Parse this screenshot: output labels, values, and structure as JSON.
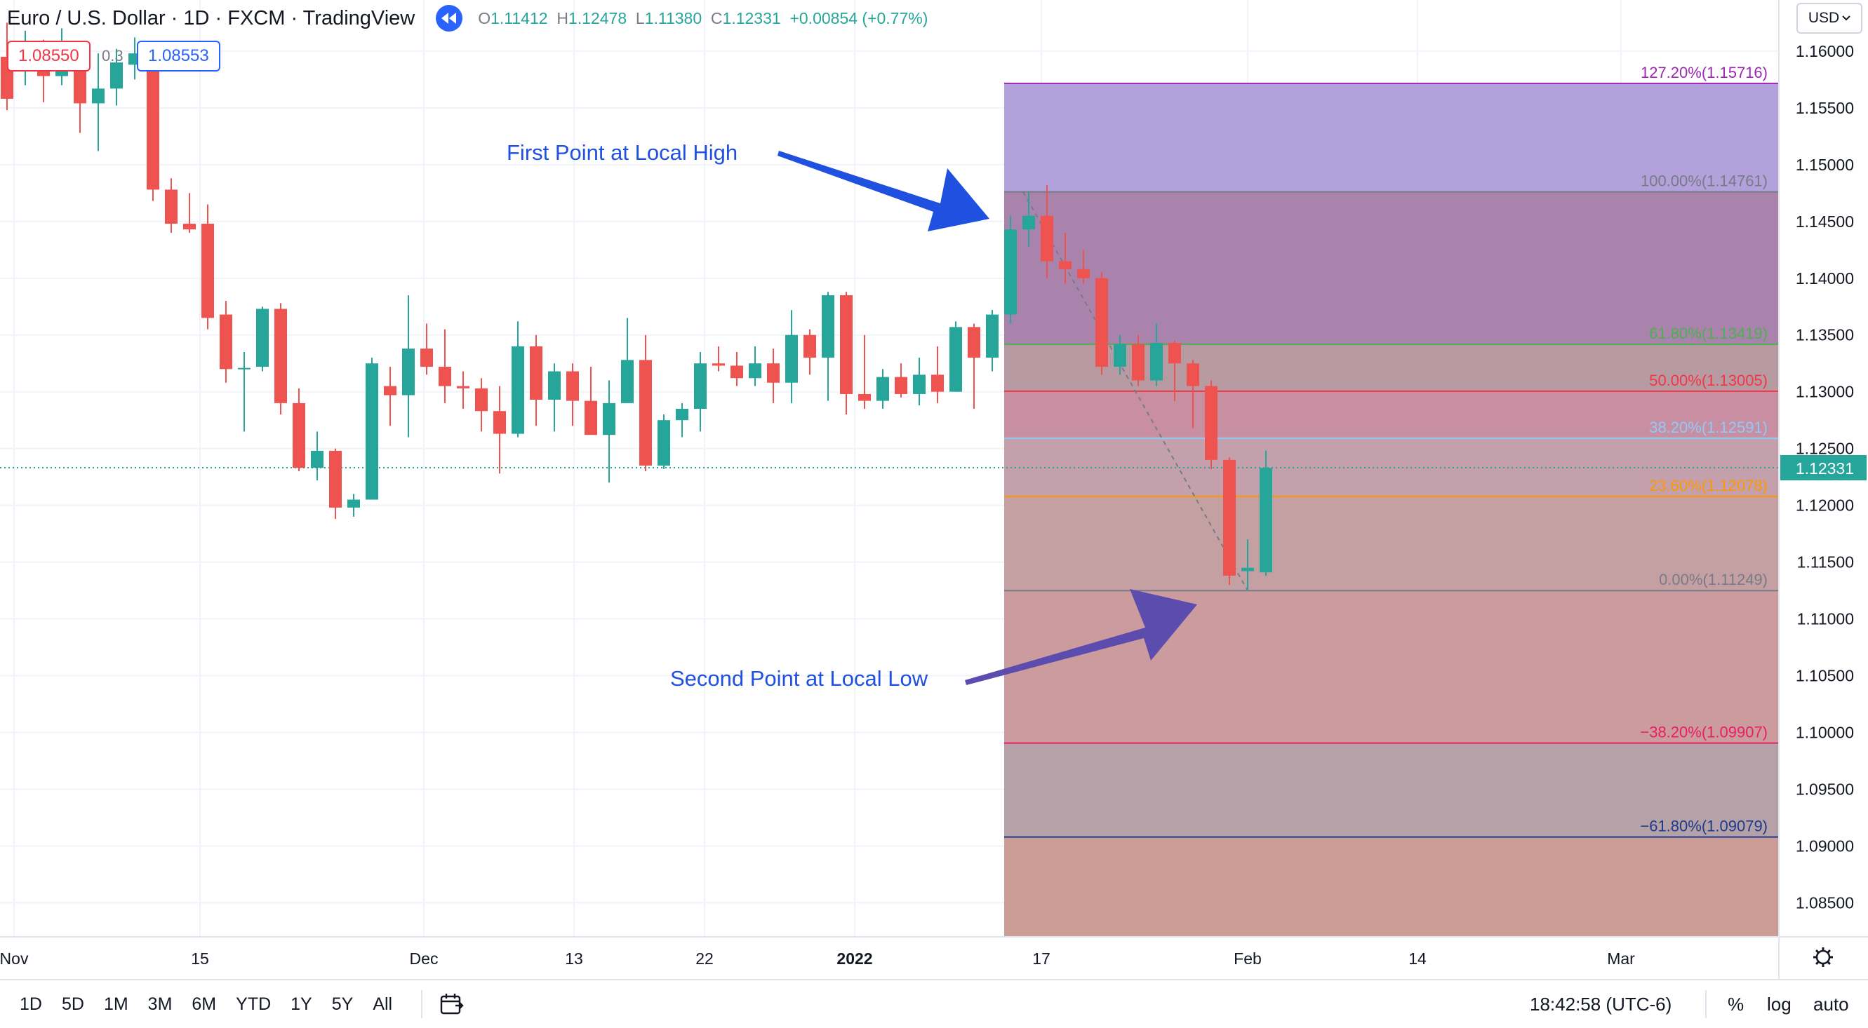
{
  "header": {
    "symbol": "Euro / U.S. Dollar · 1D · FXCM · TradingView",
    "ohlc": {
      "o_label": "O",
      "o": "1.11412",
      "h_label": "H",
      "h": "1.12478",
      "l_label": "L",
      "l": "1.11380",
      "c_label": "C",
      "c": "1.12331",
      "change": "+0.00854 (+0.77%)"
    },
    "sell_price": "1.08550",
    "spread": "0.3",
    "buy_price": "1.08553",
    "currency": "USD"
  },
  "chart_data": {
    "type": "candlestick",
    "title": "Euro / U.S. Dollar · 1D · FXCM · TradingView",
    "x_labels": [
      "Nov",
      "15",
      "Dec",
      "13",
      "22",
      "2022",
      "17",
      "Feb",
      "14",
      "Mar"
    ],
    "y_ticks": [
      1.085,
      1.09,
      1.095,
      1.1,
      1.105,
      1.11,
      1.115,
      1.12,
      1.125,
      1.13,
      1.135,
      1.14,
      1.145,
      1.15,
      1.155,
      1.16
    ],
    "y_tick_labels": [
      "1.08500",
      "1.09000",
      "1.09500",
      "1.10000",
      "1.10500",
      "1.11000",
      "1.11500",
      "1.12000",
      "1.12500",
      "1.13000",
      "1.13500",
      "1.14000",
      "1.14500",
      "1.15000",
      "1.15500",
      "1.16000"
    ],
    "ylim": [
      1.082,
      1.1645
    ],
    "last_price": 1.12331,
    "last_price_label": "1.12331",
    "candles": [
      {
        "o": 1.1595,
        "h": 1.1625,
        "l": 1.1548,
        "c": 1.1558
      },
      {
        "o": 1.1582,
        "h": 1.1618,
        "l": 1.157,
        "c": 1.1598
      },
      {
        "o": 1.1595,
        "h": 1.161,
        "l": 1.1555,
        "c": 1.1578
      },
      {
        "o": 1.1578,
        "h": 1.162,
        "l": 1.157,
        "c": 1.1593
      },
      {
        "o": 1.1597,
        "h": 1.1608,
        "l": 1.1528,
        "c": 1.1554
      },
      {
        "o": 1.1554,
        "h": 1.1598,
        "l": 1.1512,
        "c": 1.1567
      },
      {
        "o": 1.1567,
        "h": 1.1602,
        "l": 1.1552,
        "c": 1.159
      },
      {
        "o": 1.1588,
        "h": 1.1612,
        "l": 1.1575,
        "c": 1.1598
      },
      {
        "o": 1.1592,
        "h": 1.1598,
        "l": 1.1468,
        "c": 1.1478
      },
      {
        "o": 1.1478,
        "h": 1.1488,
        "l": 1.144,
        "c": 1.1448
      },
      {
        "o": 1.1448,
        "h": 1.1475,
        "l": 1.144,
        "c": 1.1443
      },
      {
        "o": 1.1448,
        "h": 1.1465,
        "l": 1.1355,
        "c": 1.1365
      },
      {
        "o": 1.1368,
        "h": 1.138,
        "l": 1.1308,
        "c": 1.132
      },
      {
        "o": 1.132,
        "h": 1.1335,
        "l": 1.1265,
        "c": 1.1321
      },
      {
        "o": 1.1322,
        "h": 1.1375,
        "l": 1.1318,
        "c": 1.1373
      },
      {
        "o": 1.1373,
        "h": 1.1378,
        "l": 1.128,
        "c": 1.129
      },
      {
        "o": 1.129,
        "h": 1.1303,
        "l": 1.123,
        "c": 1.1233
      },
      {
        "o": 1.1233,
        "h": 1.1265,
        "l": 1.1222,
        "c": 1.1248
      },
      {
        "o": 1.1248,
        "h": 1.125,
        "l": 1.1188,
        "c": 1.1198
      },
      {
        "o": 1.1198,
        "h": 1.121,
        "l": 1.119,
        "c": 1.1205
      },
      {
        "o": 1.1205,
        "h": 1.133,
        "l": 1.1205,
        "c": 1.1325
      },
      {
        "o": 1.1305,
        "h": 1.1322,
        "l": 1.127,
        "c": 1.1297
      },
      {
        "o": 1.1297,
        "h": 1.1385,
        "l": 1.126,
        "c": 1.1338
      },
      {
        "o": 1.1338,
        "h": 1.136,
        "l": 1.1315,
        "c": 1.1322
      },
      {
        "o": 1.1322,
        "h": 1.1355,
        "l": 1.129,
        "c": 1.1305
      },
      {
        "o": 1.1305,
        "h": 1.1318,
        "l": 1.1285,
        "c": 1.1303
      },
      {
        "o": 1.1303,
        "h": 1.1312,
        "l": 1.1265,
        "c": 1.1283
      },
      {
        "o": 1.1283,
        "h": 1.1305,
        "l": 1.1228,
        "c": 1.1263
      },
      {
        "o": 1.1263,
        "h": 1.1362,
        "l": 1.126,
        "c": 1.134
      },
      {
        "o": 1.134,
        "h": 1.135,
        "l": 1.127,
        "c": 1.1293
      },
      {
        "o": 1.1293,
        "h": 1.1325,
        "l": 1.1265,
        "c": 1.1318
      },
      {
        "o": 1.1318,
        "h": 1.1325,
        "l": 1.127,
        "c": 1.1292
      },
      {
        "o": 1.1292,
        "h": 1.1322,
        "l": 1.1265,
        "c": 1.1262
      },
      {
        "o": 1.1262,
        "h": 1.131,
        "l": 1.122,
        "c": 1.129
      },
      {
        "o": 1.129,
        "h": 1.1365,
        "l": 1.129,
        "c": 1.1328
      },
      {
        "o": 1.1328,
        "h": 1.135,
        "l": 1.123,
        "c": 1.1235
      },
      {
        "o": 1.1235,
        "h": 1.128,
        "l": 1.1232,
        "c": 1.1275
      },
      {
        "o": 1.1275,
        "h": 1.129,
        "l": 1.126,
        "c": 1.1285
      },
      {
        "o": 1.1285,
        "h": 1.1335,
        "l": 1.1265,
        "c": 1.1325
      },
      {
        "o": 1.1325,
        "h": 1.134,
        "l": 1.1318,
        "c": 1.1323
      },
      {
        "o": 1.1323,
        "h": 1.1335,
        "l": 1.1305,
        "c": 1.1312
      },
      {
        "o": 1.1312,
        "h": 1.134,
        "l": 1.1305,
        "c": 1.1325
      },
      {
        "o": 1.1325,
        "h": 1.1338,
        "l": 1.129,
        "c": 1.1308
      },
      {
        "o": 1.1308,
        "h": 1.1372,
        "l": 1.129,
        "c": 1.135
      },
      {
        "o": 1.135,
        "h": 1.1355,
        "l": 1.1315,
        "c": 1.133
      },
      {
        "o": 1.133,
        "h": 1.1388,
        "l": 1.1292,
        "c": 1.1385
      },
      {
        "o": 1.1385,
        "h": 1.1388,
        "l": 1.128,
        "c": 1.1298
      },
      {
        "o": 1.1298,
        "h": 1.135,
        "l": 1.1285,
        "c": 1.1292
      },
      {
        "o": 1.1292,
        "h": 1.132,
        "l": 1.1285,
        "c": 1.1313
      },
      {
        "o": 1.1313,
        "h": 1.1325,
        "l": 1.1295,
        "c": 1.1298
      },
      {
        "o": 1.1298,
        "h": 1.133,
        "l": 1.1288,
        "c": 1.1315
      },
      {
        "o": 1.1315,
        "h": 1.134,
        "l": 1.129,
        "c": 1.13
      },
      {
        "o": 1.13,
        "h": 1.1362,
        "l": 1.13,
        "c": 1.1357
      },
      {
        "o": 1.1357,
        "h": 1.136,
        "l": 1.1285,
        "c": 1.133
      },
      {
        "o": 1.133,
        "h": 1.1372,
        "l": 1.1318,
        "c": 1.1368
      },
      {
        "o": 1.1368,
        "h": 1.1455,
        "l": 1.136,
        "c": 1.1443
      },
      {
        "o": 1.1443,
        "h": 1.1476,
        "l": 1.1428,
        "c": 1.1455
      },
      {
        "o": 1.1455,
        "h": 1.1482,
        "l": 1.14,
        "c": 1.1415
      },
      {
        "o": 1.1415,
        "h": 1.144,
        "l": 1.1395,
        "c": 1.1408
      },
      {
        "o": 1.1408,
        "h": 1.1425,
        "l": 1.1395,
        "c": 1.14
      },
      {
        "o": 1.14,
        "h": 1.1405,
        "l": 1.1315,
        "c": 1.1322
      },
      {
        "o": 1.1322,
        "h": 1.135,
        "l": 1.1315,
        "c": 1.1342
      },
      {
        "o": 1.1342,
        "h": 1.135,
        "l": 1.1305,
        "c": 1.131
      },
      {
        "o": 1.131,
        "h": 1.136,
        "l": 1.1305,
        "c": 1.1343
      },
      {
        "o": 1.1343,
        "h": 1.1345,
        "l": 1.1292,
        "c": 1.1325
      },
      {
        "o": 1.1325,
        "h": 1.1328,
        "l": 1.1268,
        "c": 1.1305
      },
      {
        "o": 1.1305,
        "h": 1.131,
        "l": 1.1232,
        "c": 1.124
      },
      {
        "o": 1.124,
        "h": 1.1242,
        "l": 1.113,
        "c": 1.1138
      },
      {
        "o": 1.1142,
        "h": 1.117,
        "l": 1.1125,
        "c": 1.1145
      },
      {
        "o": 1.1141,
        "h": 1.1248,
        "l": 1.1138,
        "c": 1.1233
      }
    ],
    "fib_levels": [
      {
        "label": "127.20%(1.15716)",
        "price": 1.15716,
        "color": "#9c27b0",
        "fill": "#b3a1dc"
      },
      {
        "label": "100.00%(1.14761)",
        "price": 1.14761,
        "color": "#787b86",
        "fill": "#a983ab"
      },
      {
        "label": "61.80%(1.13419)",
        "price": 1.13419,
        "color": "#4caf50",
        "fill": "#b89aa2"
      },
      {
        "label": "50.00%(1.13005)",
        "price": 1.13005,
        "color": "#f23645",
        "fill": "#c88fa3"
      },
      {
        "label": "38.20%(1.12591)",
        "price": 1.12591,
        "color": "#90caf9",
        "fill": "#c3a0ac"
      },
      {
        "label": "23.60%(1.12078)",
        "price": 1.12078,
        "color": "#ff9800",
        "fill": "#c4a0a3"
      },
      {
        "label": "0.00%(1.11249)",
        "price": 1.11249,
        "color": "#787b86",
        "fill": "#cc9b9e"
      },
      {
        "label": "−38.20%(1.09907)",
        "price": 1.09907,
        "color": "#e91e63",
        "fill": "#b4a2a8"
      },
      {
        "label": "−61.80%(1.09079)",
        "price": 1.09079,
        "color": "#1e3a8a",
        "fill": "#cc9c96"
      }
    ],
    "annotations": [
      "First Point at Local High",
      "Second Point at Local Low"
    ]
  },
  "bottom_bar": {
    "ranges": [
      "1D",
      "5D",
      "1M",
      "3M",
      "6M",
      "YTD",
      "1Y",
      "5Y",
      "All"
    ],
    "time": "18:42:58 (UTC-6)",
    "percent": "%",
    "log": "log",
    "auto": "auto"
  }
}
